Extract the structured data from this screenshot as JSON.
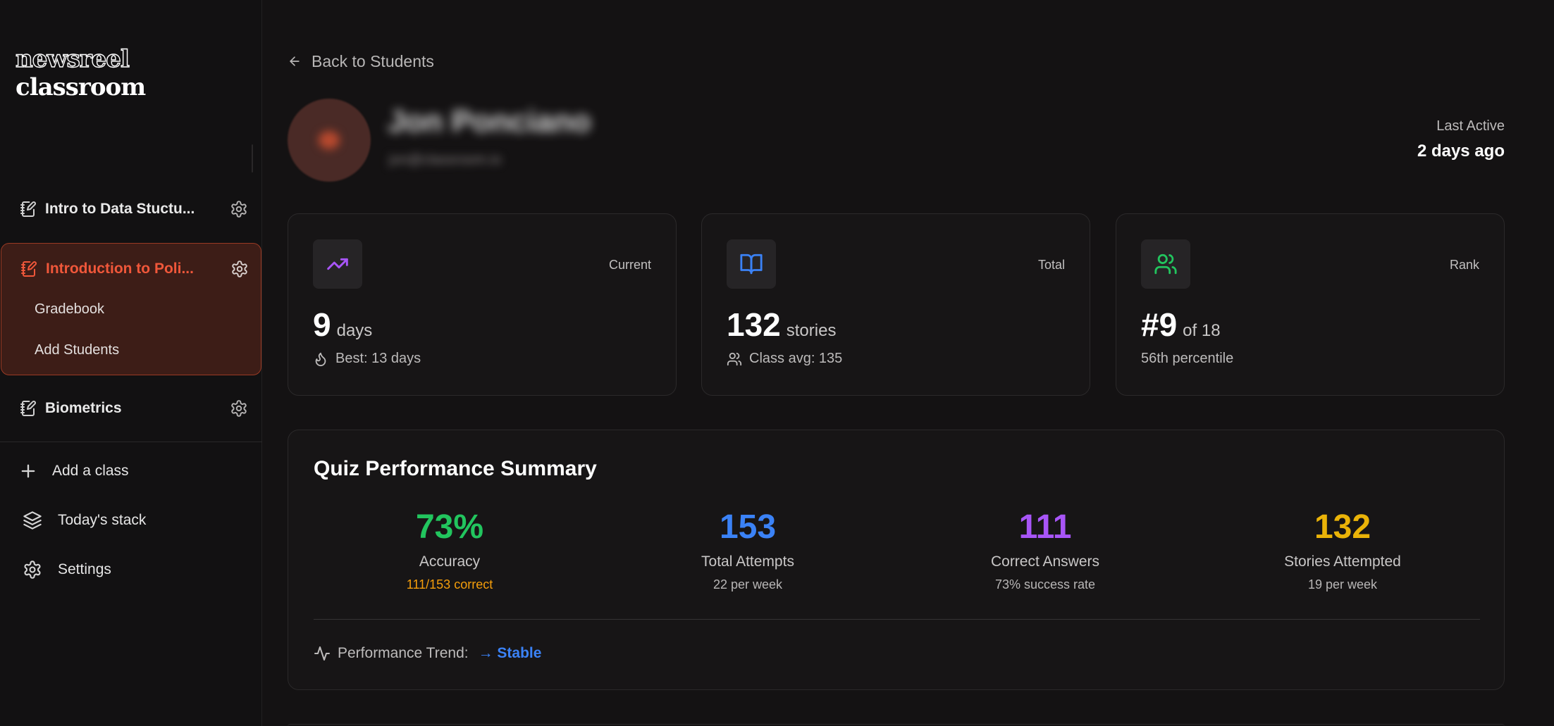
{
  "app": {
    "logo_outline": "newsreel",
    "logo_solid": "classroom"
  },
  "sidebar": {
    "classes": [
      {
        "label": "Intro to Data Stuctu...",
        "active": false
      },
      {
        "label": "Introduction to Poli...",
        "active": true,
        "sub_items": [
          "Gradebook",
          "Add Students"
        ]
      },
      {
        "label": "Biometrics",
        "active": false
      }
    ],
    "nav": [
      {
        "label": "Add a class",
        "icon": "plus-icon"
      },
      {
        "label": "Today's stack",
        "icon": "layers-icon"
      },
      {
        "label": "Settings",
        "icon": "gear-icon"
      }
    ]
  },
  "header": {
    "back_label": "Back to Students",
    "student_name": "Jon Ponciano",
    "student_email": "jon@classroom.io",
    "last_active_label": "Last Active",
    "last_active_value": "2 days ago"
  },
  "stats": [
    {
      "tag": "Current",
      "value": "9",
      "unit": "days",
      "sub": "Best: 13 days",
      "icon": "trending-up-icon",
      "icon_color": "#a855f7"
    },
    {
      "tag": "Total",
      "value": "132",
      "unit": "stories",
      "sub": "Class avg: 135",
      "icon": "book-open-icon",
      "icon_color": "#3b82f6"
    },
    {
      "tag": "Rank",
      "value": "#9",
      "unit": "of 18",
      "sub": "56th percentile",
      "icon": "users-icon",
      "icon_color": "#22c55e"
    }
  ],
  "quiz": {
    "title": "Quiz Performance Summary",
    "metrics": [
      {
        "value": "73%",
        "label": "Accuracy",
        "note": "111/153 correct",
        "color": "#22c55e",
        "note_color": "#f59e0b"
      },
      {
        "value": "153",
        "label": "Total Attempts",
        "note": "22 per week",
        "color": "#3b82f6",
        "note_color": "#b8b6b6"
      },
      {
        "value": "111",
        "label": "Correct Answers",
        "note": "73% success rate",
        "color": "#a855f7",
        "note_color": "#b8b6b6"
      },
      {
        "value": "132",
        "label": "Stories Attempted",
        "note": "19 per week",
        "color": "#eab308",
        "note_color": "#b8b6b6"
      }
    ],
    "trend_label": "Performance Trend:",
    "trend_value": "→ Stable"
  },
  "colors": {
    "accent": "#f0573a",
    "active_bg": "#3d1d17"
  }
}
